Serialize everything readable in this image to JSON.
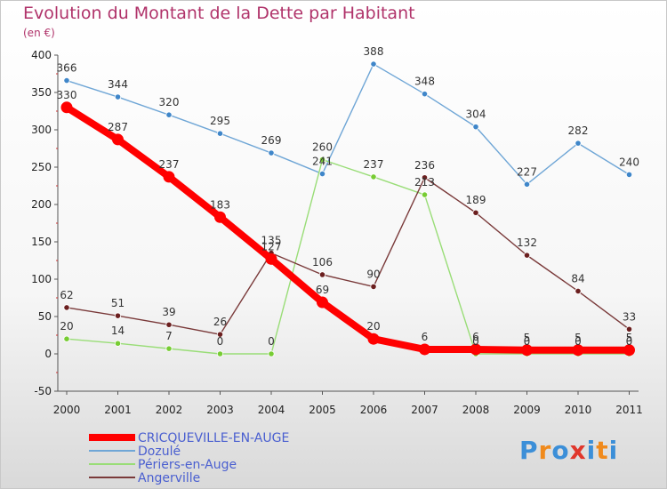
{
  "chart_data": {
    "type": "line",
    "title": "Evolution du Montant de la Dette par Habitant",
    "subtitle": "(en €)",
    "x": [
      "2000",
      "2001",
      "2002",
      "2003",
      "2004",
      "2005",
      "2006",
      "2007",
      "2008",
      "2009",
      "2010",
      "2011"
    ],
    "ylim": [
      -50,
      400
    ],
    "yticks": [
      -50,
      0,
      50,
      100,
      150,
      200,
      250,
      300,
      350,
      400
    ],
    "grid": false,
    "legend_position": "bottom-left",
    "series": [
      {
        "name": "CRICQUEVILLE-EN-AUGE",
        "color": "#ff0000",
        "marker_color": "#ff0000",
        "values": [
          330,
          287,
          237,
          183,
          127,
          69,
          20,
          6,
          6,
          5,
          5,
          5
        ]
      },
      {
        "name": "Dozulé",
        "color": "#6fa6d6",
        "marker_color": "#3f86c9",
        "values": [
          366,
          344,
          320,
          295,
          269,
          241,
          388,
          348,
          304,
          227,
          282,
          240
        ]
      },
      {
        "name": "Périers-en-Auge",
        "color": "#99dd77",
        "marker_color": "#77cc33",
        "values": [
          20,
          14,
          7,
          0,
          0,
          260,
          237,
          213,
          0,
          0,
          0,
          0
        ]
      },
      {
        "name": "Angerville",
        "color": "#7a3a3a",
        "marker_color": "#6b1f1f",
        "values": [
          62,
          51,
          39,
          26,
          135,
          106,
          90,
          236,
          189,
          132,
          84,
          33
        ]
      }
    ]
  },
  "logo": {
    "letters": [
      "P",
      "r",
      "o",
      "x",
      "i",
      "t",
      "i"
    ],
    "colors": [
      "#3c8fd8",
      "#f08a1c",
      "#3c8fd8",
      "#e0372c",
      "#3c8fd8",
      "#f08a1c",
      "#3c8fd8"
    ]
  }
}
